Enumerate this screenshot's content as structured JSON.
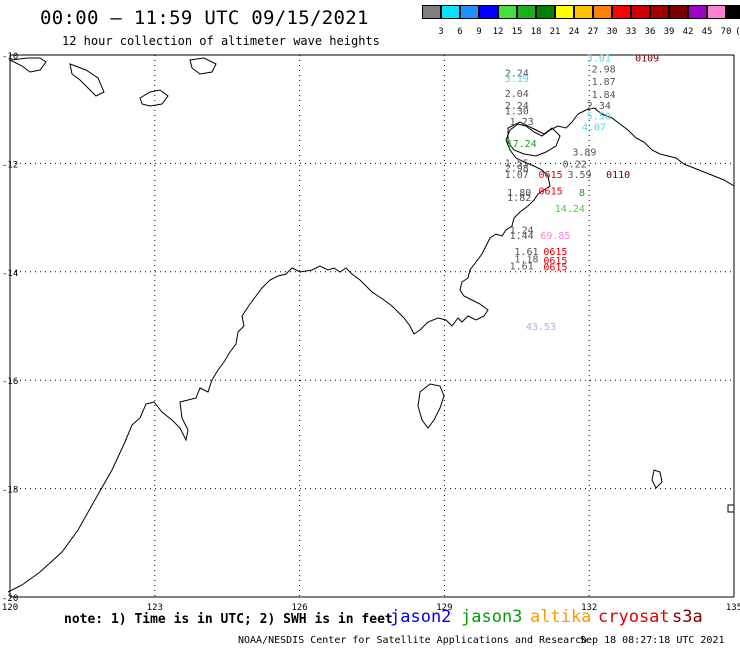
{
  "title": "00:00 — 11:59 UTC 09/15/2021",
  "subtitle": "12 hour collection of altimeter wave heights",
  "colorbar": {
    "labels": [
      "3",
      "6",
      "9",
      "12",
      "15",
      "18",
      "21",
      "24",
      "27",
      "30",
      "33",
      "36",
      "39",
      "42",
      "45",
      "70"
    ],
    "unit": "(ft)",
    "colors": [
      "#7f7f7f",
      "#00e5ff",
      "#1e90ff",
      "#0000ff",
      "#40e040",
      "#19b219",
      "#008000",
      "#ffff00",
      "#ffc000",
      "#ff8000",
      "#ff0000",
      "#d00000",
      "#a00000",
      "#7a0000",
      "#a000c8",
      "#ff80d0",
      "#000000"
    ]
  },
  "axes": {
    "lon_labels": [
      "120",
      "123",
      "126",
      "129",
      "132",
      "135"
    ],
    "lat_labels": [
      "-10",
      "-12",
      "-14",
      "-16",
      "-18",
      "-20"
    ]
  },
  "chart_data": {
    "type": "scatter",
    "x_range": [
      120,
      135
    ],
    "y_range": [
      -20,
      -10
    ],
    "points": [
      {
        "lon": 132.2,
        "lat": -10.05,
        "text": "3.01",
        "color": "#4fd8e8"
      },
      {
        "lon": 133.2,
        "lat": -10.05,
        "text": "0109",
        "color": "#7a0000"
      },
      {
        "lon": 132.3,
        "lat": -10.25,
        "text": "2.98",
        "color": "#555555"
      },
      {
        "lon": 130.5,
        "lat": -10.32,
        "text": "2.24",
        "color": "#555555"
      },
      {
        "lon": 130.5,
        "lat": -10.42,
        "text": "3.19",
        "color": "#4fd8e8"
      },
      {
        "lon": 132.3,
        "lat": -10.48,
        "text": "1.87",
        "color": "#555555"
      },
      {
        "lon": 130.5,
        "lat": -10.7,
        "text": "2.04",
        "color": "#555555"
      },
      {
        "lon": 132.3,
        "lat": -10.72,
        "text": "1.84",
        "color": "#555555"
      },
      {
        "lon": 130.5,
        "lat": -10.92,
        "text": "2.24",
        "color": "#555555"
      },
      {
        "lon": 130.5,
        "lat": -11.02,
        "text": "1.30",
        "color": "#555555"
      },
      {
        "lon": 132.2,
        "lat": -10.92,
        "text": "2.34",
        "color": "#555555"
      },
      {
        "lon": 130.6,
        "lat": -11.22,
        "text": "1.23",
        "color": "#555555"
      },
      {
        "lon": 132.2,
        "lat": -11.12,
        "text": "5.50",
        "color": "#4fd8e8"
      },
      {
        "lon": 132.1,
        "lat": -11.32,
        "text": "4.07",
        "color": "#4fd8e8"
      },
      {
        "lon": 130.6,
        "lat": -11.62,
        "text": "17.24",
        "color": "#19a019"
      },
      {
        "lon": 131.9,
        "lat": -11.78,
        "text": "3.89",
        "color": "#555555"
      },
      {
        "lon": 130.5,
        "lat": -11.98,
        "text": "1.55",
        "color": "#555555"
      },
      {
        "lon": 131.7,
        "lat": -12.0,
        "text": "0.22",
        "color": "#555555"
      },
      {
        "lon": 130.5,
        "lat": -12.08,
        "text": "2.98",
        "color": "#555555"
      },
      {
        "lon": 130.5,
        "lat": -12.2,
        "text": "1.07",
        "color": "#555555"
      },
      {
        "lon": 131.2,
        "lat": -12.2,
        "text": "0615",
        "color": "#e00000"
      },
      {
        "lon": 131.8,
        "lat": -12.2,
        "text": "3.59",
        "color": "#555555"
      },
      {
        "lon": 132.6,
        "lat": -12.2,
        "text": "0110",
        "color": "#7a0000"
      },
      {
        "lon": 130.55,
        "lat": -12.53,
        "text": "1.80",
        "color": "#555555"
      },
      {
        "lon": 131.2,
        "lat": -12.5,
        "text": "0615",
        "color": "#e00000"
      },
      {
        "lon": 131.85,
        "lat": -12.53,
        "text": "8",
        "color": "#19a019"
      },
      {
        "lon": 130.55,
        "lat": -12.62,
        "text": "1.82",
        "color": "#555555"
      },
      {
        "lon": 131.6,
        "lat": -12.82,
        "text": "14.24",
        "color": "#40d040"
      },
      {
        "lon": 130.6,
        "lat": -13.22,
        "text": "1.24",
        "color": "#555555"
      },
      {
        "lon": 130.6,
        "lat": -13.32,
        "text": "1.44",
        "color": "#555555"
      },
      {
        "lon": 131.3,
        "lat": -13.32,
        "text": "69.85",
        "color": "#ff80d0"
      },
      {
        "lon": 130.7,
        "lat": -13.62,
        "text": "1.61",
        "color": "#555555"
      },
      {
        "lon": 131.3,
        "lat": -13.62,
        "text": "0615",
        "color": "#e00000"
      },
      {
        "lon": 130.7,
        "lat": -13.75,
        "text": "1.18",
        "color": "#555555"
      },
      {
        "lon": 131.3,
        "lat": -13.78,
        "text": "0615",
        "color": "#e00000"
      },
      {
        "lon": 130.6,
        "lat": -13.88,
        "text": "1.61",
        "color": "#555555"
      },
      {
        "lon": 131.3,
        "lat": -13.9,
        "text": "0615",
        "color": "#e00000"
      },
      {
        "lon": 131.0,
        "lat": -15.0,
        "text": "43.53",
        "color": "#b0b0e0"
      }
    ]
  },
  "note": "note: 1) Time is in UTC; 2) SWH is in feet",
  "legend": [
    {
      "label": "jason2",
      "color": "#0000e0"
    },
    {
      "label": "jason3",
      "color": "#00a000"
    },
    {
      "label": "altika",
      "color": "#ff9900"
    },
    {
      "label": "cryosat",
      "color": "#e00000"
    },
    {
      "label": "s3a",
      "color": "#7a0000"
    }
  ],
  "credit": "NOAA/NESDIS Center for Satellite Applications and Research",
  "timestamp": "Sep 18 08:27:18 UTC 2021"
}
